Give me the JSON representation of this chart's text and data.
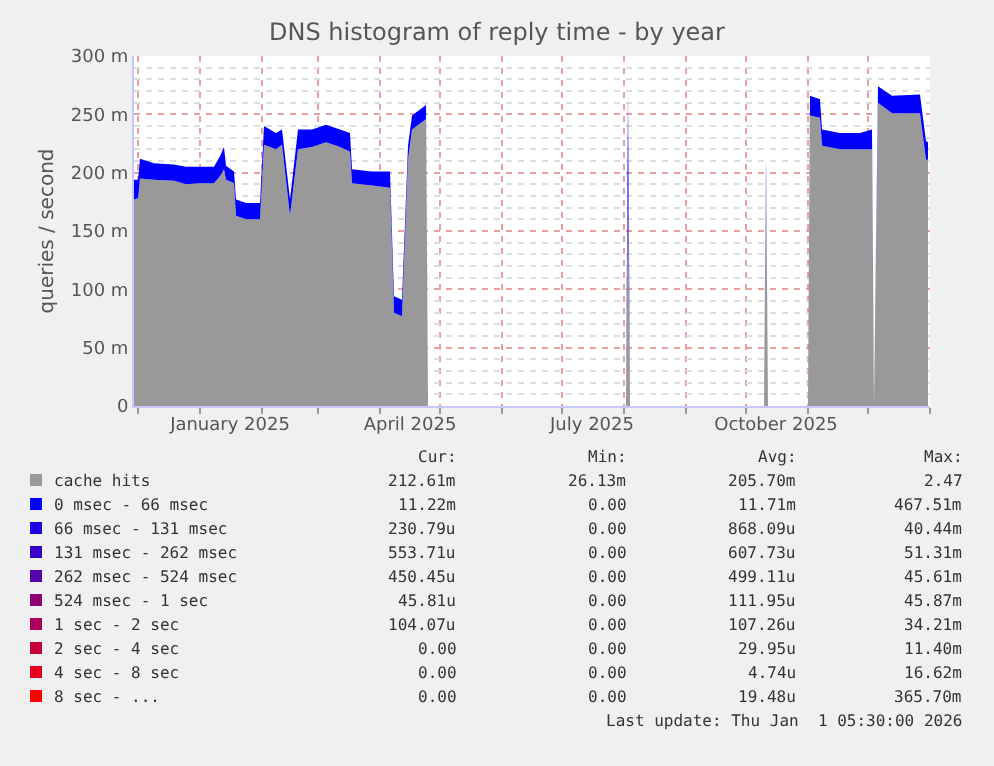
{
  "chart_data": {
    "type": "area",
    "stacked": true,
    "title": "DNS histogram of reply time - by year",
    "ylabel": "queries / second",
    "x": [
      "2024-11-29",
      "2024-12-01",
      "2024-12-02",
      "2024-12-09",
      "2024-12-19",
      "2024-12-25",
      "2025-01-01",
      "2025-01-08",
      "2025-01-11",
      "2025-01-13",
      "2025-01-14",
      "2025-01-18",
      "2025-01-19",
      "2025-01-24",
      "2025-01-31",
      "2025-02-02",
      "2025-02-08",
      "2025-02-11",
      "2025-02-15",
      "2025-02-19",
      "2025-02-26",
      "2025-03-05",
      "2025-03-12",
      "2025-03-17",
      "2025-03-18",
      "2025-03-28",
      "2025-04-06",
      "2025-04-08",
      "2025-04-12",
      "2025-04-15",
      "2025-04-17",
      "2025-04-24",
      "2025-04-25",
      "2025-08-02",
      "2025-08-03",
      "2025-08-04",
      "2025-10-10",
      "2025-10-11",
      "2025-10-12",
      "2025-11-01",
      "2025-11-02",
      "2025-11-07",
      "2025-11-08",
      "2025-11-17",
      "2025-11-27",
      "2025-12-03",
      "2025-12-04",
      "2025-12-06",
      "2025-12-13",
      "2025-12-27",
      "2025-12-30",
      "2025-12-31"
    ],
    "series": [
      {
        "name": "cache hits",
        "color": "#999999",
        "values": [
          177,
          178,
          195,
          194,
          193,
          190,
          191,
          191,
          197,
          203,
          194,
          191,
          163,
          160,
          160,
          224,
          220,
          224,
          163,
          220,
          222,
          226,
          222,
          218,
          191,
          189,
          187,
          80,
          77,
          211,
          237,
          246,
          null,
          null,
          194,
          null,
          null,
          194,
          null,
          null,
          249,
          247,
          223,
          220,
          220,
          220,
          null,
          260,
          251,
          251,
          211,
          211
        ]
      },
      {
        "name": "0 msec - 66 msec",
        "color": "#0000ff",
        "values": [
          17,
          16,
          17,
          14,
          14,
          15,
          14,
          14,
          17,
          19,
          12,
          10,
          14,
          14,
          14,
          16,
          14,
          13,
          14,
          17,
          15,
          15,
          15,
          16,
          12,
          12,
          14,
          14,
          14,
          12,
          12,
          12,
          null,
          null,
          74,
          null,
          null,
          18,
          null,
          null,
          17,
          16,
          14,
          14,
          14,
          17,
          null,
          14,
          15,
          16,
          16,
          15
        ]
      },
      {
        "name": "66 msec - 131 msec",
        "color": "#1c00e3",
        "values": [
          null,
          null,
          null,
          null,
          null,
          null,
          null,
          null,
          null,
          null,
          null,
          null,
          null,
          null,
          null,
          null,
          null,
          null,
          null,
          null,
          null,
          null,
          null,
          null,
          null,
          null,
          null,
          null,
          null,
          null,
          null,
          null,
          null,
          null,
          null,
          null,
          null,
          null,
          null,
          null,
          null,
          null,
          null,
          null,
          null,
          null,
          null,
          null,
          null,
          null,
          null,
          null
        ]
      },
      {
        "name": "131 msec - 262 msec",
        "color": "#3800c7",
        "values": [
          null,
          null,
          null,
          null,
          null,
          null,
          null,
          null,
          null,
          null,
          null,
          null,
          null,
          null,
          null,
          null,
          null,
          null,
          null,
          null,
          null,
          null,
          null,
          null,
          null,
          null,
          null,
          null,
          null,
          null,
          null,
          null,
          null,
          null,
          null,
          null,
          null,
          null,
          null,
          null,
          null,
          null,
          null,
          null,
          null,
          null,
          null,
          null,
          null,
          null,
          null,
          null
        ]
      },
      {
        "name": "262 msec - 524 msec",
        "color": "#5500aa",
        "values": [
          null,
          null,
          null,
          null,
          null,
          null,
          null,
          null,
          null,
          null,
          null,
          null,
          null,
          null,
          null,
          null,
          null,
          null,
          null,
          null,
          null,
          null,
          null,
          null,
          null,
          null,
          null,
          null,
          null,
          null,
          null,
          null,
          null,
          null,
          null,
          null,
          null,
          null,
          null,
          null,
          null,
          null,
          null,
          null,
          null,
          null,
          null,
          null,
          null,
          null,
          null,
          null
        ]
      },
      {
        "name": "524 msec - 1 sec",
        "color": "#8e0071",
        "values": [
          null,
          null,
          null,
          null,
          null,
          null,
          null,
          null,
          null,
          null,
          null,
          null,
          null,
          null,
          null,
          null,
          null,
          null,
          null,
          null,
          null,
          null,
          null,
          null,
          null,
          null,
          null,
          null,
          null,
          null,
          null,
          null,
          null,
          null,
          null,
          null,
          null,
          null,
          null,
          null,
          null,
          null,
          null,
          null,
          null,
          null,
          null,
          null,
          null,
          null,
          null,
          null
        ]
      },
      {
        "name": "1 sec - 2 sec",
        "color": "#aa0055",
        "values": [
          null,
          null,
          null,
          null,
          null,
          null,
          null,
          null,
          null,
          null,
          null,
          null,
          null,
          null,
          null,
          null,
          null,
          null,
          null,
          null,
          null,
          null,
          null,
          null,
          null,
          null,
          null,
          null,
          null,
          null,
          null,
          null,
          null,
          null,
          null,
          null,
          null,
          null,
          null,
          null,
          null,
          null,
          null,
          null,
          null,
          null,
          null,
          null,
          null,
          null,
          null,
          null
        ]
      },
      {
        "name": "2 sec - 4 sec",
        "color": "#c70038",
        "values": [
          null,
          null,
          null,
          null,
          null,
          null,
          null,
          null,
          null,
          null,
          null,
          null,
          null,
          null,
          null,
          null,
          null,
          null,
          null,
          null,
          null,
          null,
          null,
          null,
          null,
          null,
          null,
          null,
          null,
          null,
          null,
          null,
          null,
          null,
          null,
          null,
          null,
          null,
          null,
          null,
          null,
          null,
          null,
          null,
          null,
          null,
          null,
          null,
          null,
          null,
          null,
          null
        ]
      },
      {
        "name": "4 sec - 8 sec",
        "color": "#e3001c",
        "values": [
          null,
          null,
          null,
          null,
          null,
          null,
          null,
          null,
          null,
          null,
          null,
          null,
          null,
          null,
          null,
          null,
          null,
          null,
          null,
          null,
          null,
          null,
          null,
          null,
          null,
          null,
          null,
          null,
          null,
          null,
          null,
          null,
          null,
          null,
          null,
          null,
          null,
          null,
          null,
          null,
          null,
          null,
          null,
          null,
          null,
          null,
          null,
          null,
          null,
          null,
          null,
          null
        ]
      },
      {
        "name": "8 sec - ...",
        "color": "#ff0000",
        "values": [
          null,
          null,
          null,
          null,
          null,
          null,
          null,
          null,
          null,
          null,
          null,
          null,
          null,
          null,
          null,
          null,
          null,
          null,
          null,
          null,
          null,
          null,
          null,
          null,
          null,
          null,
          null,
          null,
          null,
          null,
          null,
          null,
          null,
          null,
          null,
          null,
          null,
          null,
          null,
          null,
          null,
          null,
          null,
          null,
          null,
          null,
          null,
          null,
          null,
          null,
          null,
          null
        ]
      }
    ],
    "xlim": [
      "2024-11-29",
      "2026-01-01"
    ],
    "xticks": [
      {
        "value": "2025-01-16",
        "label": "January 2025"
      },
      {
        "value": "2025-04-16",
        "label": "April 2025"
      },
      {
        "value": "2025-07-16",
        "label": "July 2025"
      },
      {
        "value": "2025-10-16",
        "label": "October 2025"
      }
    ],
    "ylim": [
      0,
      300
    ],
    "yticks": [
      0,
      {
        "value": 50,
        "label": "50 m"
      },
      {
        "value": 100,
        "label": "100 m"
      },
      {
        "value": 150,
        "label": "150 m"
      },
      {
        "value": 200,
        "label": "200 m"
      },
      {
        "value": 250,
        "label": "250 m"
      },
      {
        "value": 300,
        "label": "300 m"
      }
    ],
    "grid": true,
    "legend": "bottom",
    "annotations": [
      "Cur:",
      "Min:",
      "Avg:",
      "Max:",
      "212.61m",
      "26.13m",
      "205.70m",
      "2.47",
      "11.22m",
      "0.00",
      "11.71m",
      "467.51m",
      "230.79u",
      "0.00",
      "868.09u",
      "40.44m",
      "553.71u",
      "0.00",
      "607.73u",
      "51.31m",
      "450.45u",
      "0.00",
      "499.11u",
      "45.61m",
      "45.81u",
      "0.00",
      "111.95u",
      "45.87m",
      "104.07u",
      "0.00",
      "107.26u",
      "34.21m",
      "0.00",
      "0.00",
      "29.95u",
      "11.40m",
      "0.00",
      "0.00",
      "4.74u",
      "16.62m",
      "0.00",
      "0.00",
      "19.48u",
      "365.70m",
      "Last update: Thu Jan  1 05:30:00 2026"
    ]
  }
}
